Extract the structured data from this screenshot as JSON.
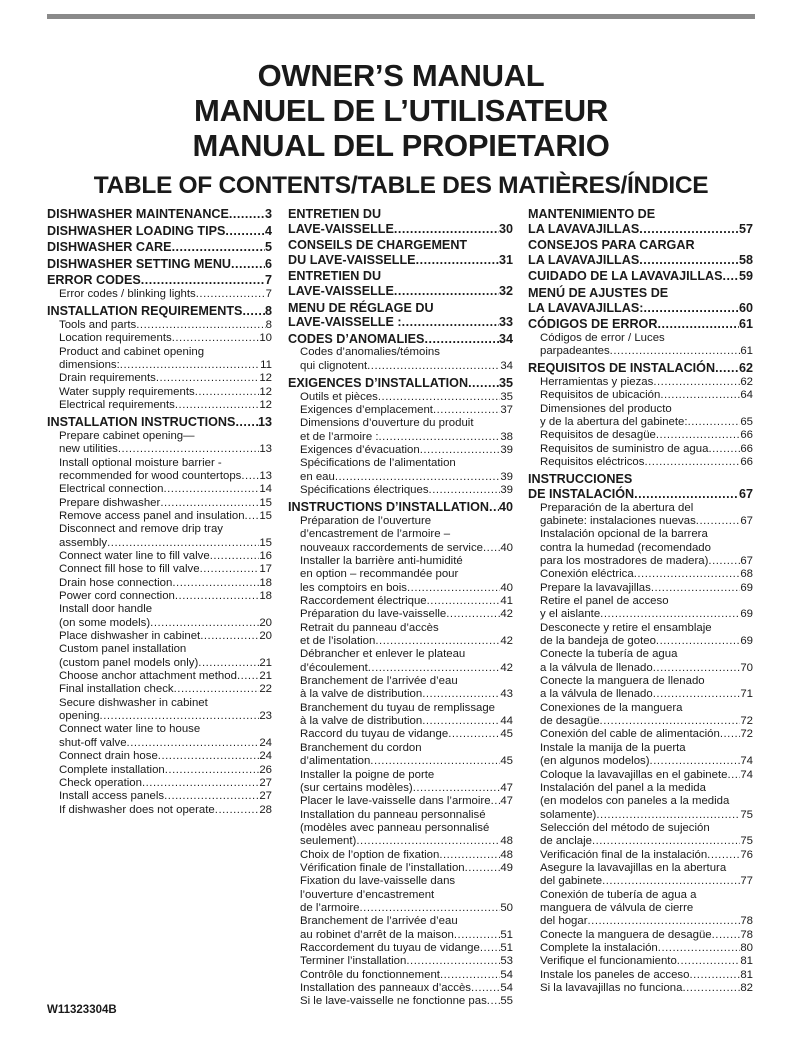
{
  "titles": [
    "OWNER’S MANUAL",
    "MANUEL DE L’UTILISATEUR",
    "MANUAL DEL PROPIETARIO"
  ],
  "toc_heading": "TABLE OF CONTENTS/TABLE DES MATIÈRES/ÍNDICE",
  "document_number": "W11323304B",
  "columns": [
    {
      "entries": [
        {
          "level": "h",
          "lines": [
            "DISHWASHER MAINTENANCE"
          ],
          "page": "3"
        },
        {
          "level": "h",
          "lines": [
            "DISHWASHER LOADING TIPS"
          ],
          "page": "4"
        },
        {
          "level": "h",
          "lines": [
            "DISHWASHER CARE"
          ],
          "page": "5"
        },
        {
          "level": "h",
          "lines": [
            "DISHWASHER SETTING MENU"
          ],
          "page": "6"
        },
        {
          "level": "h",
          "lines": [
            "ERROR CODES"
          ],
          "page": "7"
        },
        {
          "level": "s",
          "lines": [
            "Error codes / blinking lights"
          ],
          "page": "7"
        },
        {
          "level": "h",
          "lines": [
            "INSTALLATION REQUIREMENTS"
          ],
          "page": "8"
        },
        {
          "level": "s",
          "lines": [
            "Tools and parts"
          ],
          "page": "8"
        },
        {
          "level": "s",
          "lines": [
            "Location requirements"
          ],
          "page": "10"
        },
        {
          "level": "s",
          "lines": [
            "Product and cabinet opening",
            "dimensions:"
          ],
          "page": "11"
        },
        {
          "level": "s",
          "lines": [
            "Drain requirements"
          ],
          "page": "12"
        },
        {
          "level": "s",
          "lines": [
            "Water supply requirements"
          ],
          "page": "12"
        },
        {
          "level": "s",
          "lines": [
            "Electrical requirements"
          ],
          "page": "12"
        },
        {
          "level": "h",
          "lines": [
            "INSTALLATION INSTRUCTIONS"
          ],
          "page": "13"
        },
        {
          "level": "s",
          "lines": [
            "Prepare cabinet opening—",
            "new utilities"
          ],
          "page": "13"
        },
        {
          "level": "s",
          "lines": [
            "Install optional moisture barrier -",
            "recommended for wood countertops"
          ],
          "page": "13"
        },
        {
          "level": "s",
          "lines": [
            "Electrical connection"
          ],
          "page": "14"
        },
        {
          "level": "s",
          "lines": [
            "Prepare dishwasher"
          ],
          "page": "15"
        },
        {
          "level": "s",
          "lines": [
            "Remove access panel and insulation"
          ],
          "page": "15"
        },
        {
          "level": "s",
          "lines": [
            "Disconnect and remove drip tray",
            "assembly"
          ],
          "page": "15"
        },
        {
          "level": "s",
          "lines": [
            "Connect water line to fill valve"
          ],
          "page": "16"
        },
        {
          "level": "s",
          "lines": [
            "Connect fill hose to fill valve"
          ],
          "page": "17"
        },
        {
          "level": "s",
          "lines": [
            "Drain hose connection"
          ],
          "page": "18"
        },
        {
          "level": "s",
          "lines": [
            "Power cord connection"
          ],
          "page": "18"
        },
        {
          "level": "s",
          "lines": [
            "Install door handle",
            "(on some models)"
          ],
          "page": "20"
        },
        {
          "level": "s",
          "lines": [
            "Place dishwasher in cabinet"
          ],
          "page": "20"
        },
        {
          "level": "s",
          "lines": [
            "Custom panel installation",
            "(custom panel models only)"
          ],
          "page": "21"
        },
        {
          "level": "s",
          "lines": [
            "Choose anchor attachment method"
          ],
          "page": "21"
        },
        {
          "level": "s",
          "lines": [
            "Final installation check"
          ],
          "page": "22"
        },
        {
          "level": "s",
          "lines": [
            "Secure dishwasher in cabinet",
            "opening"
          ],
          "page": "23"
        },
        {
          "level": "s",
          "lines": [
            "Connect water line to house",
            "shut-off valve"
          ],
          "page": "24"
        },
        {
          "level": "s",
          "lines": [
            "Connect drain hose"
          ],
          "page": "24"
        },
        {
          "level": "s",
          "lines": [
            "Complete installation"
          ],
          "page": "26"
        },
        {
          "level": "s",
          "lines": [
            "Check operation"
          ],
          "page": "27"
        },
        {
          "level": "s",
          "lines": [
            "Install access panels"
          ],
          "page": "27"
        },
        {
          "level": "s",
          "lines": [
            "If dishwasher does not operate"
          ],
          "page": "28"
        }
      ]
    },
    {
      "entries": [
        {
          "level": "h",
          "lines": [
            "ENTRETIEN DU",
            "LAVE-VAISSELLE"
          ],
          "page": "30"
        },
        {
          "level": "h",
          "lines": [
            "CONSEILS DE CHARGEMENT",
            "DU LAVE-VAISSELLE"
          ],
          "page": "31"
        },
        {
          "level": "h",
          "lines": [
            "ENTRETIEN DU",
            "LAVE-VAISSELLE"
          ],
          "page": "32"
        },
        {
          "level": "h",
          "lines": [
            "MENU DE RÉGLAGE DU",
            "LAVE-VAISSELLE :"
          ],
          "page": "33"
        },
        {
          "level": "h",
          "lines": [
            "CODES D’ANOMALIES"
          ],
          "page": "34"
        },
        {
          "level": "s",
          "lines": [
            "Codes d’anomalies/témoins",
            "qui clignotent"
          ],
          "page": "34"
        },
        {
          "level": "h",
          "lines": [
            "EXIGENCES D’INSTALLATION"
          ],
          "page": "35"
        },
        {
          "level": "s",
          "lines": [
            "Outils et pièces"
          ],
          "page": "35"
        },
        {
          "level": "s",
          "lines": [
            "Exigences d’emplacement"
          ],
          "page": "37"
        },
        {
          "level": "s",
          "lines": [
            "Dimensions d’ouverture du produit",
            "et de l’armoire :"
          ],
          "page": "38"
        },
        {
          "level": "s",
          "lines": [
            "Exigences d’évacuation"
          ],
          "page": "39"
        },
        {
          "level": "s",
          "lines": [
            "Spécifications de l’alimentation",
            "en eau"
          ],
          "page": "39"
        },
        {
          "level": "s",
          "lines": [
            "Spécifications électriques"
          ],
          "page": "39"
        },
        {
          "level": "h",
          "lines": [
            "INSTRUCTIONS D’INSTALLATION"
          ],
          "page": "40"
        },
        {
          "level": "s",
          "lines": [
            "Préparation de l’ouverture",
            "d’encastrement de l’armoire –",
            "nouveaux raccordements de service"
          ],
          "page": "40"
        },
        {
          "level": "s",
          "lines": [
            "Installer la barrière anti-humidité",
            "en option – recommandée pour",
            "les comptoirs en bois"
          ],
          "page": "40"
        },
        {
          "level": "s",
          "lines": [
            "Raccordement électrique"
          ],
          "page": "41"
        },
        {
          "level": "s",
          "lines": [
            "Préparation du lave-vaisselle"
          ],
          "page": "42"
        },
        {
          "level": "s",
          "lines": [
            "Retrait du panneau d’accès",
            "et de l’isolation"
          ],
          "page": "42"
        },
        {
          "level": "s",
          "lines": [
            "Débrancher et enlever le plateau",
            "d’écoulement"
          ],
          "page": "42"
        },
        {
          "level": "s",
          "lines": [
            "Branchement de l’arrivée d’eau",
            "à la valve de distribution"
          ],
          "page": "43"
        },
        {
          "level": "s",
          "lines": [
            "Branchement du tuyau de remplissage",
            "à la valve de distribution"
          ],
          "page": "44"
        },
        {
          "level": "s",
          "lines": [
            "Raccord du tuyau de vidange"
          ],
          "page": "45"
        },
        {
          "level": "s",
          "lines": [
            "Branchement du cordon",
            "d’alimentation"
          ],
          "page": "45"
        },
        {
          "level": "s",
          "lines": [
            "Installer la poigne de porte",
            "(sur certains modèles)"
          ],
          "page": "47"
        },
        {
          "level": "s",
          "lines": [
            "Placer le lave-vaisselle dans l’armoire"
          ],
          "page": "47"
        },
        {
          "level": "s",
          "lines": [
            "Installation du panneau personnalisé",
            "(modèles avec panneau personnalisé",
            "seulement)"
          ],
          "page": "48"
        },
        {
          "level": "s",
          "lines": [
            "Choix de l’option de fixation"
          ],
          "page": "48"
        },
        {
          "level": "s",
          "lines": [
            "Vérification finale de l’installation"
          ],
          "page": "49"
        },
        {
          "level": "s",
          "lines": [
            "Fixation du lave-vaisselle dans",
            "l’ouverture d’encastrement",
            "de l’armoire"
          ],
          "page": "50"
        },
        {
          "level": "s",
          "lines": [
            "Branchement de l’arrivée d’eau",
            "au robinet d’arrêt de la maison"
          ],
          "page": "51"
        },
        {
          "level": "s",
          "lines": [
            "Raccordement du tuyau de vidange"
          ],
          "page": "51"
        },
        {
          "level": "s",
          "lines": [
            "Terminer l’installation"
          ],
          "page": "53"
        },
        {
          "level": "s",
          "lines": [
            "Contrôle du fonctionnement"
          ],
          "page": "54"
        },
        {
          "level": "s",
          "lines": [
            "Installation des panneaux d’accès"
          ],
          "page": "54"
        },
        {
          "level": "s",
          "lines": [
            "Si le lave-vaisselle ne fonctionne pas"
          ],
          "page": "55"
        }
      ]
    },
    {
      "entries": [
        {
          "level": "h",
          "lines": [
            "MANTENIMIENTO DE",
            "LA LAVAVAJILLAS"
          ],
          "page": "57"
        },
        {
          "level": "h",
          "lines": [
            "CONSEJOS PARA CARGAR",
            "LA LAVAVAJILLAS"
          ],
          "page": "58"
        },
        {
          "level": "h",
          "lines": [
            "CUIDADO DE LA LAVAVAJILLAS"
          ],
          "page": "59"
        },
        {
          "level": "h",
          "lines": [
            "MENÚ DE AJUSTES DE",
            "LA LAVAVAJILLAS:"
          ],
          "page": "60"
        },
        {
          "level": "h",
          "lines": [
            "CÓDIGOS DE ERROR"
          ],
          "page": "61"
        },
        {
          "level": "s",
          "lines": [
            "Códigos de error / Luces",
            "parpadeantes"
          ],
          "page": "61"
        },
        {
          "level": "h",
          "lines": [
            "REQUISITOS DE INSTALACIÓN"
          ],
          "page": "62"
        },
        {
          "level": "s",
          "lines": [
            "Herramientas y piezas"
          ],
          "page": "62"
        },
        {
          "level": "s",
          "lines": [
            "Requisitos de ubicación"
          ],
          "page": "64"
        },
        {
          "level": "s",
          "lines": [
            "Dimensiones del producto",
            "y de la abertura del gabinete:"
          ],
          "page": "65"
        },
        {
          "level": "s",
          "lines": [
            "Requisitos de desagüe"
          ],
          "page": "66"
        },
        {
          "level": "s",
          "lines": [
            "Requisitos de suministro de agua"
          ],
          "page": "66"
        },
        {
          "level": "s",
          "lines": [
            "Requisitos eléctricos"
          ],
          "page": "66"
        },
        {
          "level": "h",
          "lines": [
            "INSTRUCCIONES",
            "DE INSTALACIÓN"
          ],
          "page": "67"
        },
        {
          "level": "s",
          "lines": [
            "Preparación de la abertura del",
            "gabinete: instalaciones nuevas"
          ],
          "page": "67"
        },
        {
          "level": "s",
          "lines": [
            "Instalación opcional de la barrera",
            "contra la humedad (recomendado",
            "para los mostradores de madera)"
          ],
          "page": "67"
        },
        {
          "level": "s",
          "lines": [
            "Conexión eléctrica"
          ],
          "page": "68"
        },
        {
          "level": "s",
          "lines": [
            "Prepare la lavavajillas"
          ],
          "page": "69"
        },
        {
          "level": "s",
          "lines": [
            "Retire el panel de acceso",
            "y el aislante"
          ],
          "page": "69"
        },
        {
          "level": "s",
          "lines": [
            "Desconecte y retire el ensamblaje",
            "de la bandeja de goteo"
          ],
          "page": "69"
        },
        {
          "level": "s",
          "lines": [
            "Conecte la tubería de agua",
            "a la válvula de llenado"
          ],
          "page": "70"
        },
        {
          "level": "s",
          "lines": [
            "Conecte la manguera de llenado",
            "a la válvula de llenado"
          ],
          "page": "71"
        },
        {
          "level": "s",
          "lines": [
            "Conexiones de la manguera",
            "de desagüe"
          ],
          "page": "72"
        },
        {
          "level": "s",
          "lines": [
            "Conexión del cable de alimentación"
          ],
          "page": "72"
        },
        {
          "level": "s",
          "lines": [
            "Instale la manija de la puerta",
            "(en algunos modelos)"
          ],
          "page": "74"
        },
        {
          "level": "s",
          "lines": [
            "Coloque la lavavajillas en el gabinete"
          ],
          "page": "74"
        },
        {
          "level": "s",
          "lines": [
            "Instalación del panel a la medida",
            "(en modelos con paneles a la medida",
            "solamente)"
          ],
          "page": "75"
        },
        {
          "level": "s",
          "lines": [
            "Selección del método de sujeción",
            "de anclaje"
          ],
          "page": "75"
        },
        {
          "level": "s",
          "lines": [
            "Verificación final de la instalación"
          ],
          "page": "76"
        },
        {
          "level": "s",
          "lines": [
            "Asegure la lavavajillas en la abertura",
            "del gabinete"
          ],
          "page": "77"
        },
        {
          "level": "s",
          "lines": [
            "Conexión de tubería de agua a",
            "manguera de válvula de cierre",
            "del hogar"
          ],
          "page": "78"
        },
        {
          "level": "s",
          "lines": [
            "Conecte la manguera de desagüe"
          ],
          "page": "78"
        },
        {
          "level": "s",
          "lines": [
            "Complete la instalación"
          ],
          "page": "80"
        },
        {
          "level": "s",
          "lines": [
            "Verifique el funcionamiento"
          ],
          "page": "81"
        },
        {
          "level": "s",
          "lines": [
            "Instale los paneles de acceso"
          ],
          "page": "81"
        },
        {
          "level": "s",
          "lines": [
            "Si la lavavajillas no funciona"
          ],
          "page": "82"
        }
      ]
    }
  ]
}
